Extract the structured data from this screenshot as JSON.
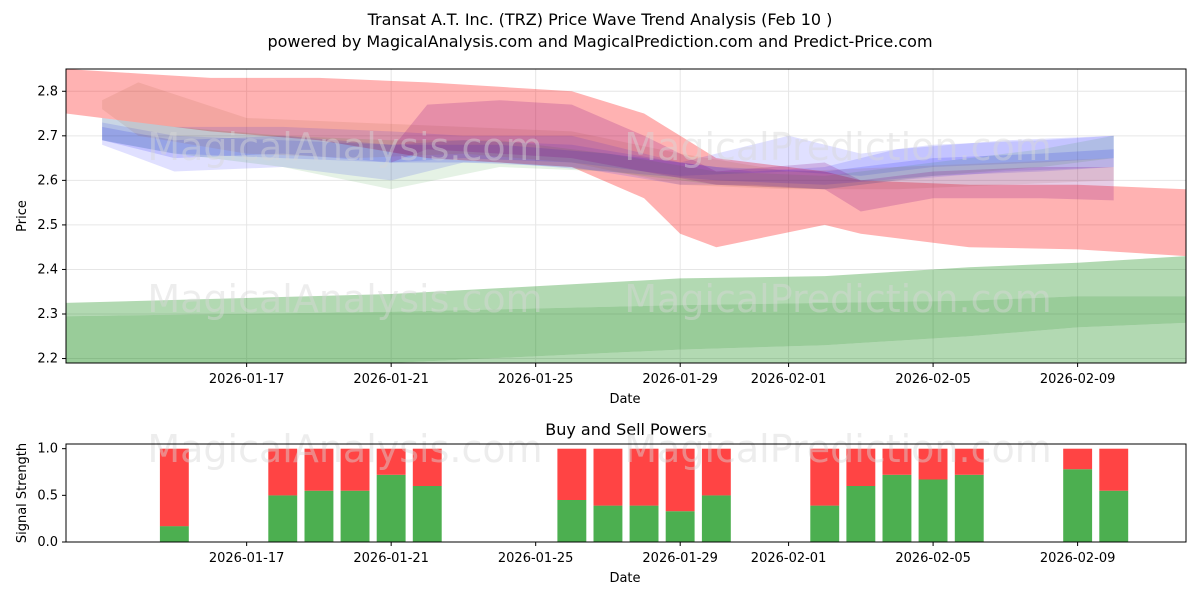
{
  "chart_data": [
    {
      "type": "area",
      "title": "Transat A.T. Inc. (TRZ) Price Wave Trend Analysis (Feb 10 )",
      "subtitle": "powered by MagicalAnalysis.com and MagicalPrediction.com and Predict-Price.com",
      "xlabel": "Date",
      "ylabel": "Price",
      "xlim": [
        "2026-01-12",
        "2026-02-12"
      ],
      "ylim": [
        2.19,
        2.85
      ],
      "xticks": [
        "2026-01-17",
        "2026-01-21",
        "2026-01-25",
        "2026-01-29",
        "2026-02-01",
        "2026-02-05",
        "2026-02-09"
      ],
      "yticks": [
        2.2,
        2.3,
        2.4,
        2.5,
        2.6,
        2.7,
        2.8
      ],
      "yticklabels": [
        "2.2",
        "2.3",
        "2.4",
        "2.5",
        "2.6",
        "2.7",
        "2.8"
      ],
      "watermarks": [
        "MagicalAnalysis.com",
        "MagicalPrediction.com",
        "MagicalAnalysis.com",
        "MagicalPrediction.com"
      ],
      "bands": [
        {
          "name": "red-forecast-band",
          "color": "#ff0000",
          "opacity": 0.3,
          "x": [
            "2026-01-12",
            "2026-01-14",
            "2026-01-16",
            "2026-01-19",
            "2026-01-22",
            "2026-01-24",
            "2026-01-26",
            "2026-01-28",
            "2026-01-29",
            "2026-01-30",
            "2026-02-02",
            "2026-02-03",
            "2026-02-06",
            "2026-02-09",
            "2026-02-12"
          ],
          "upper": [
            2.85,
            2.84,
            2.83,
            2.83,
            2.82,
            2.81,
            2.8,
            2.75,
            2.7,
            2.65,
            2.62,
            2.6,
            2.59,
            2.59,
            2.58
          ],
          "lower": [
            2.75,
            2.73,
            2.71,
            2.69,
            2.65,
            2.64,
            2.63,
            2.56,
            2.48,
            2.45,
            2.5,
            2.48,
            2.45,
            2.445,
            2.43
          ]
        },
        {
          "name": "green-band-upper",
          "color": "#008000",
          "opacity": 0.3,
          "x": [
            "2026-01-12",
            "2026-01-21",
            "2026-01-29",
            "2026-02-02",
            "2026-02-06",
            "2026-02-09",
            "2026-02-12"
          ],
          "upper": [
            2.325,
            2.345,
            2.38,
            2.385,
            2.405,
            2.415,
            2.43
          ],
          "lower": [
            2.295,
            2.305,
            2.32,
            2.325,
            2.33,
            2.34,
            2.34
          ]
        },
        {
          "name": "green-band-main",
          "color": "#008000",
          "opacity": 0.4,
          "x": [
            "2026-01-12",
            "2026-01-21",
            "2026-01-29",
            "2026-02-02",
            "2026-02-06",
            "2026-02-09",
            "2026-02-12"
          ],
          "upper": [
            2.295,
            2.305,
            2.32,
            2.325,
            2.33,
            2.34,
            2.34
          ],
          "lower": [
            2.17,
            2.19,
            2.22,
            2.23,
            2.25,
            2.27,
            2.28
          ]
        },
        {
          "name": "green-band-lower",
          "color": "#008000",
          "opacity": 0.3,
          "x": [
            "2026-01-12",
            "2026-01-21",
            "2026-01-29",
            "2026-02-02",
            "2026-02-06",
            "2026-02-09",
            "2026-02-12"
          ],
          "upper": [
            2.17,
            2.19,
            2.22,
            2.23,
            2.25,
            2.27,
            2.28
          ],
          "lower": [
            2.12,
            2.13,
            2.14,
            2.15,
            2.16,
            2.16,
            2.17
          ]
        },
        {
          "name": "blue-band-1",
          "color": "#0000ff",
          "opacity": 0.12,
          "x": [
            "2026-01-13",
            "2026-01-15",
            "2026-01-18",
            "2026-01-21",
            "2026-01-23",
            "2026-01-26",
            "2026-01-29",
            "2026-01-31",
            "2026-02-02",
            "2026-02-04",
            "2026-02-07",
            "2026-02-10"
          ],
          "upper": [
            2.74,
            2.72,
            2.72,
            2.71,
            2.7,
            2.7,
            2.64,
            2.62,
            2.63,
            2.67,
            2.69,
            2.7
          ],
          "lower": [
            2.68,
            2.62,
            2.63,
            2.6,
            2.64,
            2.63,
            2.59,
            2.59,
            2.58,
            2.6,
            2.62,
            2.63
          ]
        },
        {
          "name": "blue-band-2",
          "color": "#0000ff",
          "opacity": 0.12,
          "x": [
            "2026-01-13",
            "2026-01-15",
            "2026-01-18",
            "2026-01-21",
            "2026-01-23",
            "2026-01-26",
            "2026-01-29",
            "2026-02-01",
            "2026-02-03",
            "2026-02-05",
            "2026-02-08",
            "2026-02-10"
          ],
          "upper": [
            2.73,
            2.7,
            2.69,
            2.68,
            2.69,
            2.68,
            2.64,
            2.7,
            2.66,
            2.68,
            2.69,
            2.7
          ],
          "lower": [
            2.69,
            2.66,
            2.65,
            2.64,
            2.65,
            2.64,
            2.61,
            2.62,
            2.61,
            2.63,
            2.64,
            2.65
          ]
        },
        {
          "name": "blue-band-3",
          "color": "#0000ff",
          "opacity": 0.14,
          "x": [
            "2026-01-13",
            "2026-01-15",
            "2026-01-18",
            "2026-01-21",
            "2026-01-24",
            "2026-01-27",
            "2026-01-30",
            "2026-02-02",
            "2026-02-05",
            "2026-02-08",
            "2026-02-10"
          ],
          "upper": [
            2.72,
            2.69,
            2.7,
            2.68,
            2.68,
            2.66,
            2.63,
            2.62,
            2.65,
            2.66,
            2.67
          ],
          "lower": [
            2.69,
            2.65,
            2.66,
            2.64,
            2.64,
            2.62,
            2.6,
            2.59,
            2.61,
            2.62,
            2.63
          ]
        },
        {
          "name": "green-wave-band",
          "color": "#008000",
          "opacity": 0.1,
          "x": [
            "2026-01-13",
            "2026-01-15",
            "2026-01-18",
            "2026-01-21",
            "2026-01-24",
            "2026-01-27",
            "2026-01-30",
            "2026-02-02",
            "2026-02-05",
            "2026-02-08",
            "2026-02-10"
          ],
          "upper": [
            2.74,
            2.72,
            2.7,
            2.69,
            2.69,
            2.66,
            2.62,
            2.61,
            2.64,
            2.67,
            2.7
          ],
          "lower": [
            2.69,
            2.66,
            2.63,
            2.58,
            2.63,
            2.62,
            2.59,
            2.58,
            2.61,
            2.63,
            2.65
          ]
        },
        {
          "name": "brown-wave-band",
          "color": "#a0522d",
          "opacity": 0.12,
          "x": [
            "2026-01-13",
            "2026-01-14",
            "2026-01-17",
            "2026-01-20",
            "2026-01-23",
            "2026-01-26",
            "2026-01-29",
            "2026-02-01",
            "2026-02-04",
            "2026-02-07",
            "2026-02-10"
          ],
          "upper": [
            2.78,
            2.82,
            2.74,
            2.73,
            2.72,
            2.71,
            2.66,
            2.62,
            2.63,
            2.64,
            2.65
          ],
          "lower": [
            2.76,
            2.7,
            2.66,
            2.65,
            2.66,
            2.64,
            2.59,
            2.58,
            2.58,
            2.59,
            2.6
          ]
        },
        {
          "name": "purple-wave-band",
          "color": "#800080",
          "opacity": 0.2,
          "x": [
            "2026-01-21",
            "2026-01-22",
            "2026-01-24",
            "2026-01-26",
            "2026-01-28",
            "2026-01-30",
            "2026-02-02",
            "2026-02-03",
            "2026-02-05",
            "2026-02-08",
            "2026-02-10"
          ],
          "upper": [
            2.67,
            2.77,
            2.78,
            2.77,
            2.7,
            2.62,
            2.64,
            2.6,
            2.62,
            2.63,
            2.63
          ],
          "lower": [
            2.64,
            2.67,
            2.66,
            2.65,
            2.62,
            2.59,
            2.58,
            2.53,
            2.56,
            2.56,
            2.555
          ]
        }
      ]
    },
    {
      "type": "bar",
      "title": "Buy and Sell Powers",
      "xlabel": "Date",
      "ylabel": "Signal Strength",
      "xlim": [
        "2026-01-12",
        "2026-02-12"
      ],
      "ylim": [
        0,
        1.05
      ],
      "xticks": [
        "2026-01-17",
        "2026-01-21",
        "2026-01-25",
        "2026-01-29",
        "2026-02-01",
        "2026-02-05",
        "2026-02-09"
      ],
      "yticks": [
        0,
        0.5,
        1
      ],
      "yticklabels": [
        "0.0",
        "0.5",
        "1.0"
      ],
      "watermarks": [
        "MagicalAnalysis.com",
        "MagicalPrediction.com"
      ],
      "categories": [
        "2026-01-15",
        "2026-01-18",
        "2026-01-19",
        "2026-01-20",
        "2026-01-21",
        "2026-01-22",
        "2026-01-26",
        "2026-01-27",
        "2026-01-28",
        "2026-01-29",
        "2026-01-30",
        "2026-02-02",
        "2026-02-03",
        "2026-02-04",
        "2026-02-05",
        "2026-02-06",
        "2026-02-09",
        "2026-02-10"
      ],
      "series": [
        {
          "name": "Buy",
          "color": "#4caf50",
          "values": [
            0.17,
            0.5,
            0.55,
            0.55,
            0.72,
            0.6,
            0.45,
            0.39,
            0.39,
            0.33,
            0.5,
            0.39,
            0.6,
            0.72,
            0.67,
            0.72,
            0.78,
            0.55
          ]
        },
        {
          "name": "Sell",
          "color": "#ff4444",
          "values": [
            0.83,
            0.5,
            0.45,
            0.45,
            0.28,
            0.4,
            0.55,
            0.61,
            0.61,
            0.67,
            0.5,
            0.61,
            0.4,
            0.28,
            0.33,
            0.28,
            0.22,
            0.45
          ]
        }
      ]
    }
  ]
}
